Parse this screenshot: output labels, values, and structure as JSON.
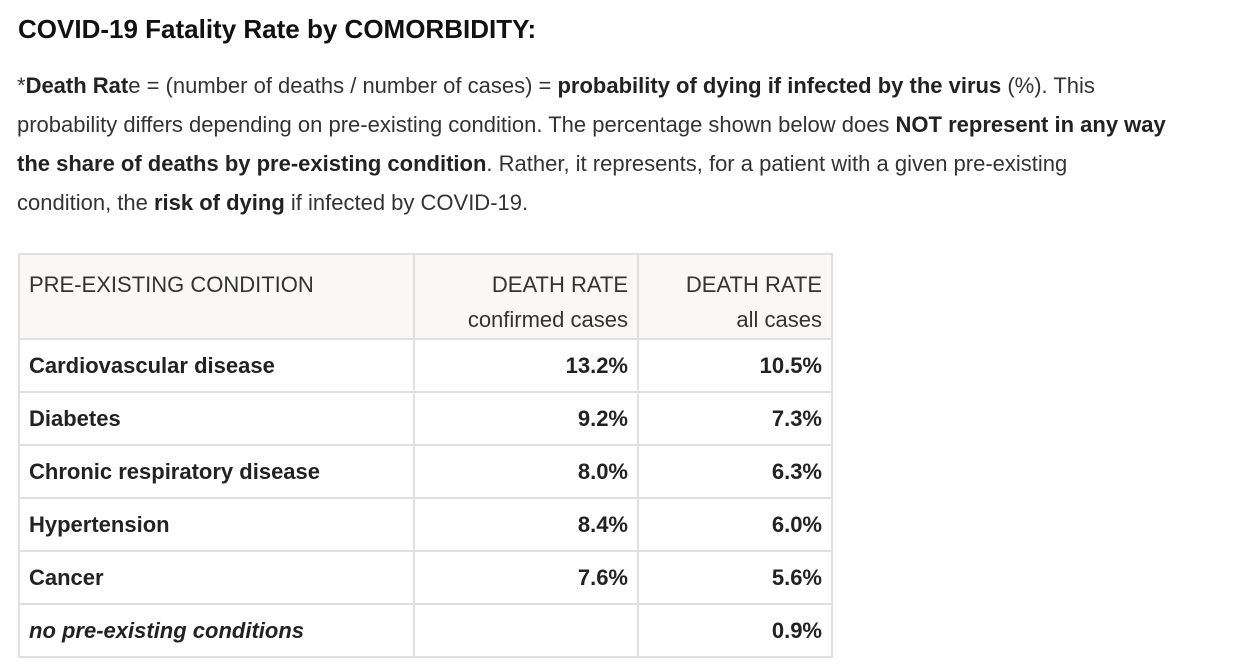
{
  "title": "COVID-19 Fatality Rate by COMORBIDITY:",
  "intro": [
    {
      "text": "*",
      "bold": false
    },
    {
      "text": "Death Rat",
      "bold": true
    },
    {
      "text": "e = (number of deaths / number of cases) = ",
      "bold": false
    },
    {
      "text": "probability of dying if infected by the virus",
      "bold": true
    },
    {
      "text": " (%). This probability differs depending on pre-existing condition. The percentage shown below does ",
      "bold": false
    },
    {
      "text": "NOT represent in any way the share of deaths by pre-existing condition",
      "bold": true
    },
    {
      "text": ". Rather, it represents, for a patient with a given pre-existing condition, the ",
      "bold": false
    },
    {
      "text": "risk of dying",
      "bold": true
    },
    {
      "text": " if infected by COVID-19.",
      "bold": false
    }
  ],
  "table": {
    "header": [
      [
        "PRE-EXISTING CONDITION"
      ],
      [
        "DEATH RATE",
        "confirmed cases"
      ],
      [
        "DEATH RATE",
        "all cases"
      ]
    ],
    "rows": [
      {
        "cells": [
          "Cardiovascular disease",
          "13.2%",
          "10.5%"
        ],
        "italic": false
      },
      {
        "cells": [
          "Diabetes",
          "9.2%",
          "7.3%"
        ],
        "italic": false
      },
      {
        "cells": [
          "Chronic respiratory disease",
          "8.0%",
          "6.3%"
        ],
        "italic": false
      },
      {
        "cells": [
          "Hypertension",
          "8.4%",
          "6.0%"
        ],
        "italic": false
      },
      {
        "cells": [
          "Cancer",
          "7.6%",
          "5.6%"
        ],
        "italic": false
      },
      {
        "cells": [
          "no pre-existing conditions",
          null,
          "0.9%"
        ],
        "italic": true
      }
    ]
  }
}
